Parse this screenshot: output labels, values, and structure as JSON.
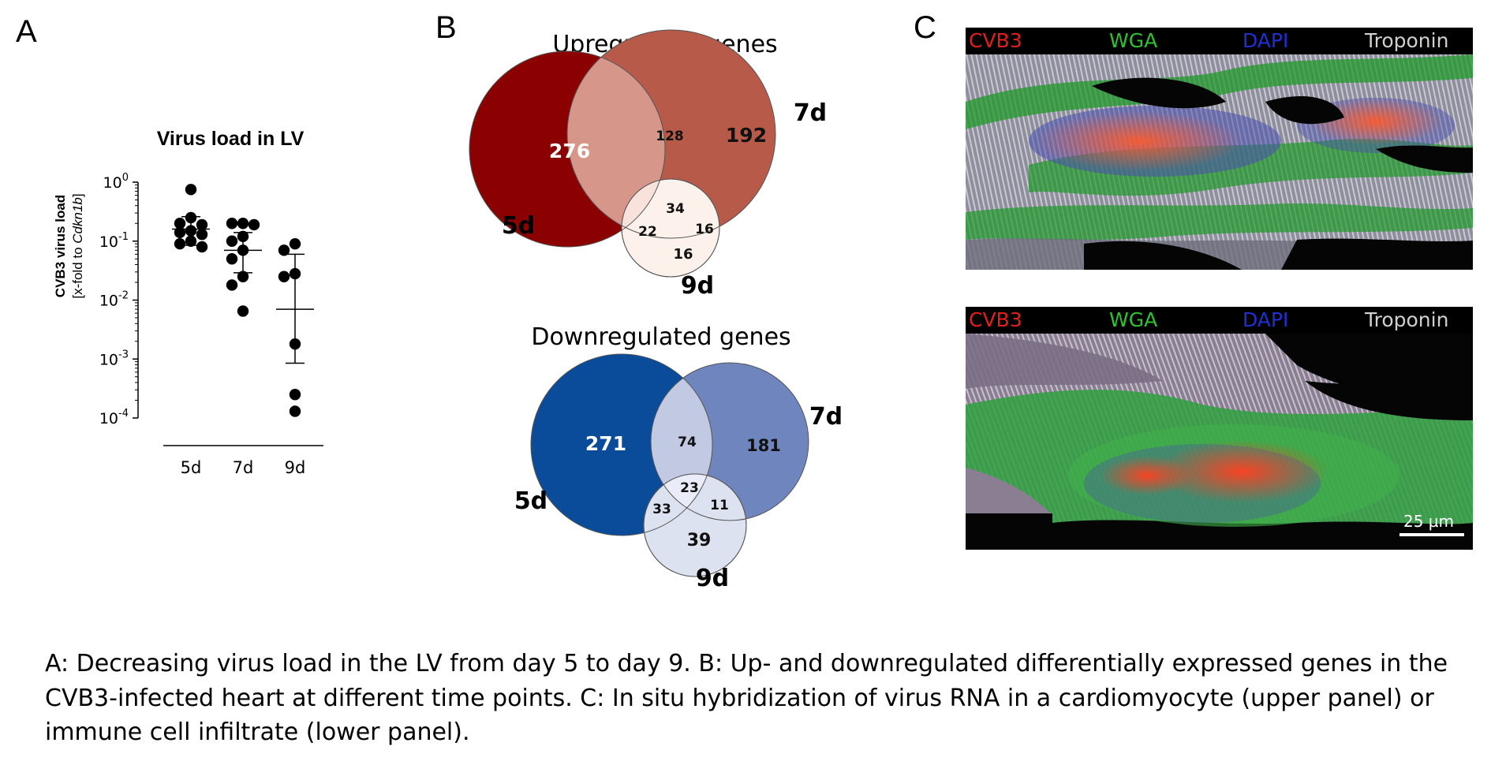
{
  "panel_letters": {
    "a": "A",
    "b": "B",
    "c": "C"
  },
  "chart_data": [
    {
      "type": "scatter",
      "title": "Virus load in LV",
      "ylabel_line1": "CVB3 virus load",
      "ylabel_line2_prefix": "[x-fold to ",
      "ylabel_line2_italic": "Cdkn1b",
      "ylabel_line2_suffix": "]",
      "yscale": "log",
      "ylim": [
        0.0001,
        1
      ],
      "yticks": [
        {
          "value": 1,
          "base": "10",
          "exp": "0"
        },
        {
          "value": 0.1,
          "base": "10",
          "exp": "-1"
        },
        {
          "value": 0.01,
          "base": "10",
          "exp": "-2"
        },
        {
          "value": 0.001,
          "base": "10",
          "exp": "-3"
        },
        {
          "value": 0.0001,
          "base": "10",
          "exp": "-4"
        }
      ],
      "categories": [
        "5d",
        "7d",
        "9d"
      ],
      "groups": [
        {
          "name": "5d",
          "points": [
            0.75,
            0.25,
            0.2,
            0.19,
            0.15,
            0.14,
            0.13,
            0.1,
            0.09,
            0.08
          ],
          "mean": 0.16,
          "upper": 0.26,
          "lower": 0.085
        },
        {
          "name": "7d",
          "points": [
            0.2,
            0.2,
            0.19,
            0.12,
            0.1,
            0.07,
            0.05,
            0.025,
            0.018,
            0.0065
          ],
          "mean": 0.07,
          "upper": 0.14,
          "lower": 0.029
        },
        {
          "name": "9d",
          "points": [
            0.09,
            0.07,
            0.028,
            0.025,
            0.0018,
            0.00025,
            0.00013
          ],
          "mean": 0.007,
          "upper": 0.06,
          "lower": 0.00085
        }
      ]
    },
    {
      "type": "venn",
      "title": "Upregulated genes",
      "sets": [
        "5d",
        "7d",
        "9d"
      ],
      "regions": {
        "5d_only": "276",
        "7d_only": "192",
        "5d_7d": "128",
        "all": "34",
        "5d_9d": "22",
        "7d_9d": "16",
        "9d_only": "16"
      },
      "colors": {
        "5d": "#8b0000",
        "7d": "#b85a4a",
        "5d_7d": "#d7968a",
        "all": "#f9e2dc",
        "9d": "#fdf1ec"
      }
    },
    {
      "type": "venn",
      "title": "Downregulated genes",
      "sets": [
        "5d",
        "7d",
        "9d"
      ],
      "regions": {
        "5d_only": "271",
        "7d_only": "181",
        "5d_7d": "74",
        "all": "23",
        "5d_9d": "33",
        "7d_9d": "11",
        "9d_only": "39"
      },
      "colors": {
        "5d": "#0a4c9a",
        "7d": "#6f85bd",
        "5d_7d": "#c1c9e3",
        "all": "#eaedf7",
        "9d": "#dde2f0"
      }
    }
  ],
  "micrographs": [
    {
      "labels": {
        "cvb3": "CVB3",
        "wga": "WGA",
        "dapi": "DAPI",
        "troponin": "Troponin"
      }
    },
    {
      "labels": {
        "cvb3": "CVB3",
        "wga": "WGA",
        "dapi": "DAPI",
        "troponin": "Troponin"
      },
      "scale_bar": "25 µm"
    }
  ],
  "label_colors": {
    "cvb3": "#e0201c",
    "wga": "#2ec32e",
    "dapi": "#1f2fd0",
    "troponin": "#d0d0d0"
  },
  "caption": {
    "line1": "A: Decreasing virus load in the LV from day 5 to day 9. B: Up- and downregulated differentially expressed genes in the",
    "line2": "CVB3-infected heart at different time points. C: In situ hybridization of virus RNA in a cardiomyocyte (upper panel) or",
    "line3": "immune cell infiltrate (lower panel)."
  }
}
